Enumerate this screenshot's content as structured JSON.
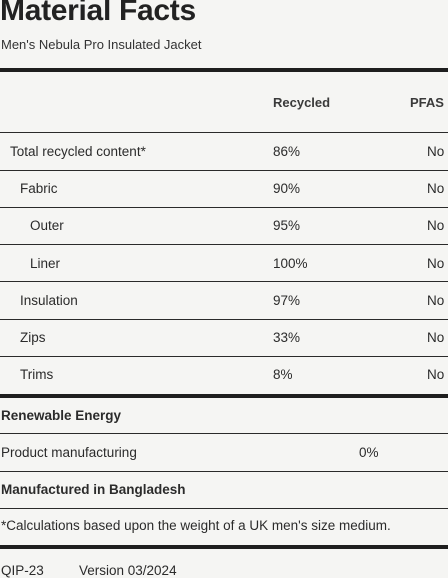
{
  "title": "Material Facts",
  "subtitle": "Men's Nebula Pro Insulated Jacket",
  "table": {
    "headers": {
      "recycled": "Recycled",
      "pfas": "PFAS"
    },
    "rows": [
      {
        "label": "Total recycled content*",
        "recycled": "86%",
        "pfas": "No"
      },
      {
        "label": "Fabric",
        "recycled": "90%",
        "pfas": "No"
      },
      {
        "label": "Outer",
        "recycled": "95%",
        "pfas": "No"
      },
      {
        "label": "Liner",
        "recycled": "100%",
        "pfas": "No"
      },
      {
        "label": "Insulation",
        "recycled": "97%",
        "pfas": "No"
      },
      {
        "label": "Zips",
        "recycled": "33%",
        "pfas": "No"
      },
      {
        "label": "Trims",
        "recycled": "8%",
        "pfas": "No"
      }
    ]
  },
  "renewable": {
    "heading": "Renewable Energy",
    "row_label": "Product manufacturing",
    "row_value": "0%"
  },
  "manufactured": "Manufactured in Bangladesh",
  "footnote": "*Calculations based upon the weight of a UK men's size medium.",
  "footer": {
    "code": "QIP-23",
    "version": "Version 03/2024"
  }
}
